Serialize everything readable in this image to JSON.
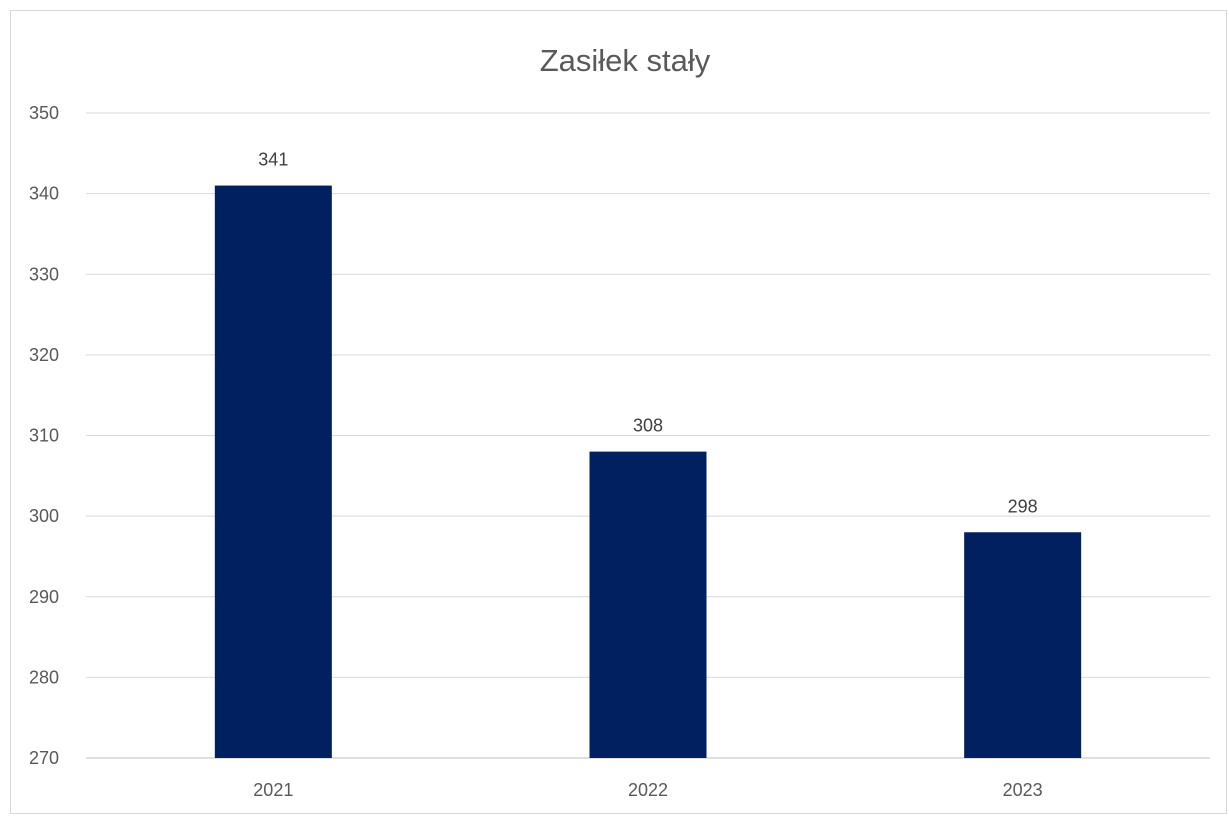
{
  "chart_data": {
    "type": "bar",
    "title": "Zasiłek stały",
    "xlabel": "",
    "ylabel": "",
    "categories": [
      "2021",
      "2022",
      "2023"
    ],
    "values": [
      341,
      308,
      298
    ],
    "data_labels": [
      "341",
      "308",
      "298"
    ],
    "ylim": [
      270,
      350
    ],
    "y_ticks": [
      270,
      280,
      290,
      300,
      310,
      320,
      330,
      340,
      350
    ],
    "y_tick_labels": [
      "270",
      "280",
      "290",
      "300",
      "310",
      "320",
      "330",
      "340",
      "350"
    ],
    "grid": true,
    "legend": "none",
    "bar_color": "#002060"
  }
}
